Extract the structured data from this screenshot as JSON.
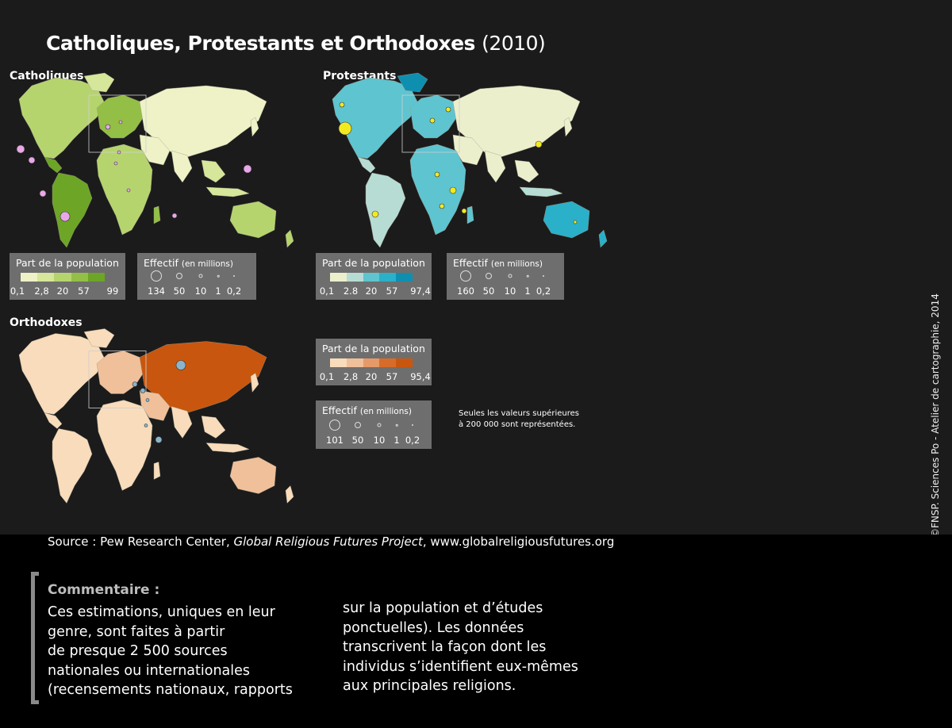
{
  "title": {
    "main": "Catholiques, Protestants et Orthodoxes",
    "year": "(2010)"
  },
  "maps": {
    "catholiques": {
      "label": "Catholiques",
      "colors": [
        "#eef2c6",
        "#d6e69a",
        "#b6d46e",
        "#93bf46",
        "#6da526"
      ],
      "bubble_color": "#e8a8e8",
      "legend_share": {
        "title": "Part de la population",
        "ticks": [
          "0,1",
          "2,8",
          "20",
          "57",
          "99"
        ]
      },
      "legend_count": {
        "title": "Effectif",
        "unit": "(en millions)",
        "ticks": [
          "134",
          "50",
          "10",
          "1",
          "0,2"
        ]
      }
    },
    "protestants": {
      "label": "Protestants",
      "colors": [
        "#ecefcc",
        "#b7dcd4",
        "#5ec4d0",
        "#2ab0c8",
        "#0f8fb0"
      ],
      "bubble_color": "#f2ea20",
      "legend_share": {
        "title": "Part de la population",
        "ticks": [
          "0,1",
          "2.8",
          "20",
          "57",
          "97,4"
        ]
      },
      "legend_count": {
        "title": "Effectif",
        "unit": "(en millions)",
        "ticks": [
          "160",
          "50",
          "10",
          "1",
          "0,2"
        ]
      }
    },
    "orthodoxes": {
      "label": "Orthodoxes",
      "colors": [
        "#f8dcbb",
        "#f0c09a",
        "#e69a68",
        "#d76c2a",
        "#c9560e"
      ],
      "bubble_color": "#8ab4cc",
      "legend_share": {
        "title": "Part de la population",
        "ticks": [
          "0,1",
          "2,8",
          "20",
          "57",
          "95,4"
        ]
      },
      "legend_count": {
        "title": "Effectif",
        "unit": "(en millions)",
        "ticks": [
          "101",
          "50",
          "10",
          "1",
          "0,2"
        ]
      }
    }
  },
  "note": "Seules les valeurs supérieures à 200 000 sont représentées.",
  "copyright": "©FNSP. Sciences Po - Atelier de cartographie, 2014",
  "source": {
    "prefix": "Source : Pew Research Center, ",
    "italic": "Global Religious Futures Project",
    "suffix": ", www.globalreligiousfutures.org"
  },
  "comment": {
    "title": "Commentaire :",
    "col1": [
      "Ces estimations, uniques en leur",
      "genre, sont faites à partir",
      "de presque 2 500 sources",
      "nationales ou internationales",
      "(recensements nationaux, rapports"
    ],
    "col2": [
      "sur la population et d’études",
      "ponctuelles). Les données",
      "transcrivent la façon dont les",
      "individus s’identifient eux-mêmes",
      "aux principales religions."
    ]
  }
}
